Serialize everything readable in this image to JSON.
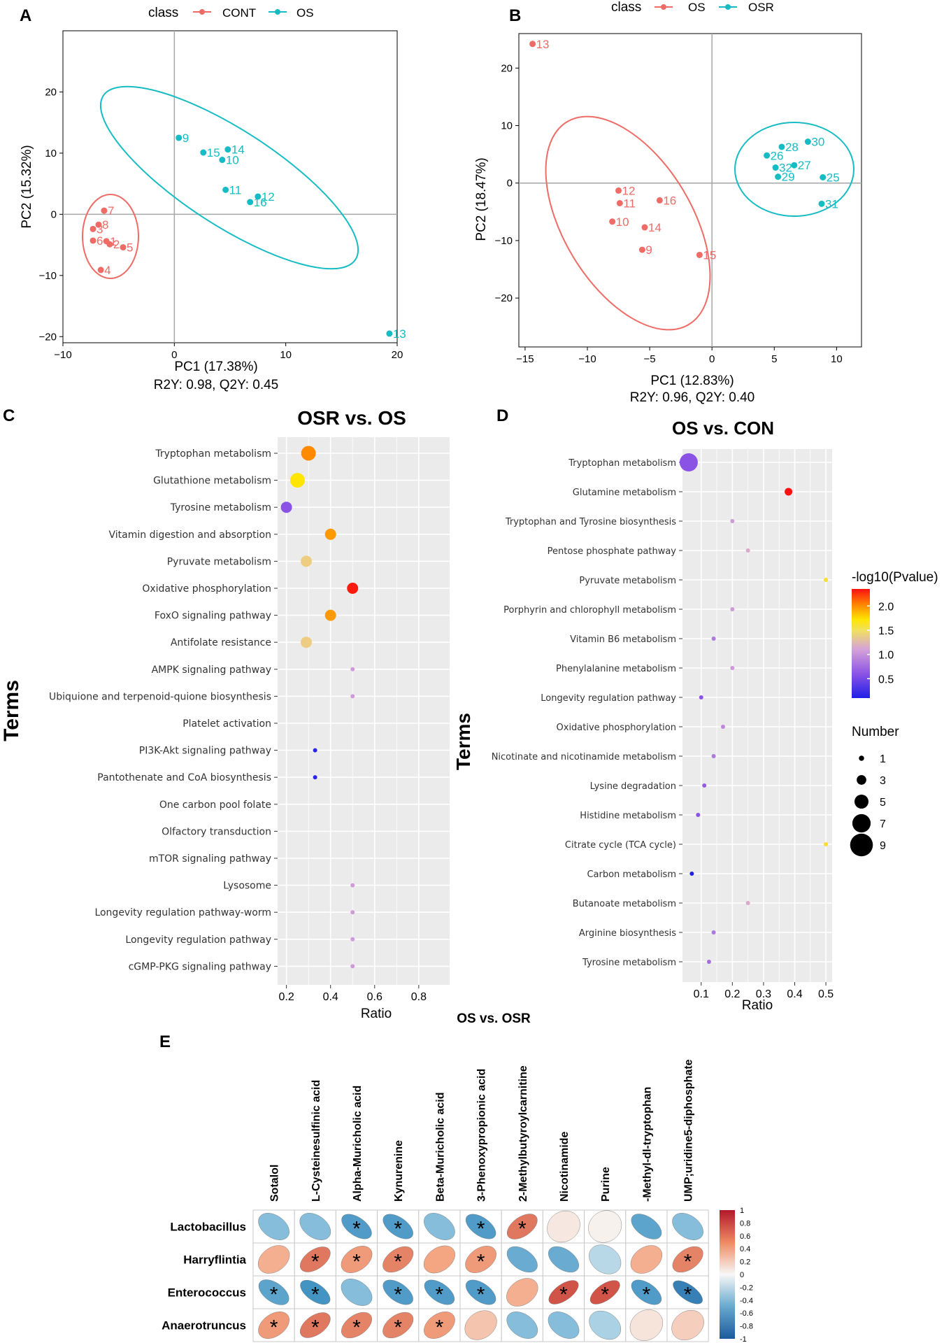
{
  "panel_letters": {
    "a": "A",
    "b": "B",
    "c": "C",
    "d": "D",
    "e": "E"
  },
  "legend_class_label": "class",
  "colors": {
    "red": "#ee6b66",
    "teal": "#16bcc3",
    "panel_bg": "#ebebeb",
    "grid": "#ffffff",
    "axis_line": "#a6a6a6"
  },
  "chart_data": [
    {
      "id": "A",
      "type": "scatter",
      "legend": [
        "CONT",
        "OS"
      ],
      "xlabel": "PC1 (17.38%)",
      "ylabel": "PC2 (15.32%)",
      "subtitle": "R2Y: 0.98, Q2Y: 0.45",
      "xlim": [
        -10,
        20
      ],
      "ylim": [
        -21,
        30
      ],
      "xticks": [
        -10,
        0,
        10,
        20
      ],
      "yticks": [
        -20,
        -10,
        0,
        10,
        20
      ],
      "series": [
        {
          "name": "CONT",
          "points": [
            {
              "x": -6.3,
              "y": 0.6,
              "label": "7"
            },
            {
              "x": -6.8,
              "y": -1.7,
              "label": "8"
            },
            {
              "x": -7.3,
              "y": -2.4,
              "label": "3"
            },
            {
              "x": -7.3,
              "y": -4.3,
              "label": "6"
            },
            {
              "x": -6.1,
              "y": -4.4,
              "label": "1"
            },
            {
              "x": -5.8,
              "y": -4.9,
              "label": "2"
            },
            {
              "x": -4.6,
              "y": -5.4,
              "label": "5"
            },
            {
              "x": -6.6,
              "y": -9.1,
              "label": "4"
            }
          ]
        },
        {
          "name": "OS",
          "points": [
            {
              "x": 0.4,
              "y": 12.5,
              "label": "9"
            },
            {
              "x": 2.6,
              "y": 10.1,
              "label": "15"
            },
            {
              "x": 4.8,
              "y": 10.6,
              "label": "14"
            },
            {
              "x": 4.3,
              "y": 8.9,
              "label": "10"
            },
            {
              "x": 4.6,
              "y": 4.0,
              "label": "11"
            },
            {
              "x": 7.5,
              "y": 2.9,
              "label": "12"
            },
            {
              "x": 6.8,
              "y": 2.0,
              "label": "16"
            },
            {
              "x": 19.3,
              "y": -19.5,
              "label": "13"
            }
          ]
        }
      ]
    },
    {
      "id": "B",
      "type": "scatter",
      "legend": [
        "OS",
        "OSR"
      ],
      "xlabel": "PC1 (12.83%)",
      "ylabel": "PC2 (18.47%)",
      "subtitle": "R2Y: 0.96, Q2Y: 0.40",
      "xlim": [
        -15.5,
        12
      ],
      "ylim": [
        -28.5,
        26
      ],
      "xticks": [
        -15,
        -10,
        -5,
        0,
        5,
        10
      ],
      "yticks": [
        -20,
        -10,
        0,
        10,
        20
      ],
      "series": [
        {
          "name": "OS",
          "points": [
            {
              "x": -14.4,
              "y": 24.2,
              "label": "13"
            },
            {
              "x": -7.5,
              "y": -1.3,
              "label": "12"
            },
            {
              "x": -7.4,
              "y": -3.5,
              "label": "11"
            },
            {
              "x": -4.2,
              "y": -3.0,
              "label": "16"
            },
            {
              "x": -8.0,
              "y": -6.7,
              "label": "10"
            },
            {
              "x": -5.4,
              "y": -7.7,
              "label": "14"
            },
            {
              "x": -5.6,
              "y": -11.6,
              "label": "9"
            },
            {
              "x": -1.0,
              "y": -12.5,
              "label": "15"
            }
          ]
        },
        {
          "name": "OSR",
          "points": [
            {
              "x": 7.7,
              "y": 7.2,
              "label": "30"
            },
            {
              "x": 5.6,
              "y": 6.3,
              "label": "28"
            },
            {
              "x": 4.4,
              "y": 4.8,
              "label": "26"
            },
            {
              "x": 6.6,
              "y": 3.1,
              "label": "27"
            },
            {
              "x": 5.1,
              "y": 2.7,
              "label": "32"
            },
            {
              "x": 5.3,
              "y": 1.1,
              "label": "29"
            },
            {
              "x": 8.9,
              "y": 1.0,
              "label": "25"
            },
            {
              "x": 8.8,
              "y": -3.6,
              "label": "31"
            }
          ]
        }
      ]
    },
    {
      "id": "C",
      "type": "scatter",
      "title": "OSR vs. OS",
      "xlabel": "Ratio",
      "ylabel": "Terms",
      "xlim": [
        0.16,
        0.94
      ],
      "xticks": [
        0.2,
        0.4,
        0.6,
        0.8
      ],
      "points": [
        {
          "term": "Tryptophan metabolism",
          "ratio": 0.3,
          "number": 7,
          "neglog10p": 1.75
        },
        {
          "term": "Glutathione metabolism",
          "ratio": 0.25,
          "number": 7,
          "neglog10p": 1.45
        },
        {
          "term": "Tyrosine metabolism",
          "ratio": 0.2,
          "number": 5,
          "neglog10p": 0.55
        },
        {
          "term": "Vitamin digestion and absorption",
          "ratio": 0.4,
          "number": 5,
          "neglog10p": 1.7
        },
        {
          "term": "Pyruvate metabolism",
          "ratio": 0.29,
          "number": 5,
          "neglog10p": 1.3
        },
        {
          "term": "Oxidative phosphorylation",
          "ratio": 0.5,
          "number": 5,
          "neglog10p": 2.3
        },
        {
          "term": "FoxO signaling pathway",
          "ratio": 0.4,
          "number": 5,
          "neglog10p": 1.7
        },
        {
          "term": "Antifolate resistance",
          "ratio": 0.29,
          "number": 5,
          "neglog10p": 1.3
        },
        {
          "term": "AMPK signaling pathway",
          "ratio": 0.5,
          "number": 1,
          "neglog10p": 0.95
        },
        {
          "term": "Ubiquione and terpenoid-quione biosynthesis",
          "ratio": 0.5,
          "number": 1,
          "neglog10p": 0.95
        },
        {
          "term": "Platelet activation",
          "ratio": null,
          "number": null,
          "neglog10p": null
        },
        {
          "term": "PI3K-Akt signaling pathway",
          "ratio": 0.33,
          "number": 1,
          "neglog10p": 0.15
        },
        {
          "term": "Pantothenate and CoA biosynthesis",
          "ratio": 0.33,
          "number": 1,
          "neglog10p": 0.15
        },
        {
          "term": "One carbon pool folate",
          "ratio": null,
          "number": null,
          "neglog10p": null
        },
        {
          "term": "Olfactory transduction",
          "ratio": null,
          "number": null,
          "neglog10p": null
        },
        {
          "term": "mTOR signaling pathway",
          "ratio": null,
          "number": null,
          "neglog10p": null
        },
        {
          "term": "Lysosome",
          "ratio": 0.5,
          "number": 1,
          "neglog10p": 0.95
        },
        {
          "term": "Longevity regulation pathway-worm",
          "ratio": 0.5,
          "number": 1,
          "neglog10p": 0.95
        },
        {
          "term": "Longevity regulation pathway",
          "ratio": 0.5,
          "number": 1,
          "neglog10p": 0.95
        },
        {
          "term": "cGMP-PKG signaling pathway",
          "ratio": 0.5,
          "number": 1,
          "neglog10p": 0.95
        }
      ]
    },
    {
      "id": "D",
      "type": "scatter",
      "title": "OS vs. CON",
      "xlabel": "Ratio",
      "ylabel": "Terms",
      "xlim": [
        0.04,
        0.52
      ],
      "xticks": [
        0.1,
        0.2,
        0.3,
        0.4,
        0.5
      ],
      "points": [
        {
          "term": "Tryptophan metabolism",
          "ratio": 0.06,
          "number": 9,
          "neglog10p": 0.55
        },
        {
          "term": "Glutamine metabolism",
          "ratio": 0.38,
          "number": 3,
          "neglog10p": 2.35
        },
        {
          "term": "Tryptophan and Tyrosine biosynthesis",
          "ratio": 0.2,
          "number": 1,
          "neglog10p": 0.95
        },
        {
          "term": "Pentose phosphate pathway",
          "ratio": 0.25,
          "number": 1,
          "neglog10p": 1.05
        },
        {
          "term": "Pyruvate metabolism",
          "ratio": 0.5,
          "number": 1,
          "neglog10p": 1.4
        },
        {
          "term": "Porphyrin and chlorophyll metabolism",
          "ratio": 0.2,
          "number": 1,
          "neglog10p": 0.95
        },
        {
          "term": "Vitamin B6 metabolism",
          "ratio": 0.14,
          "number": 1,
          "neglog10p": 0.75
        },
        {
          "term": "Phenylalanine metabolism",
          "ratio": 0.2,
          "number": 1,
          "neglog10p": 0.95
        },
        {
          "term": "Longevity regulation pathway",
          "ratio": 0.1,
          "number": 1,
          "neglog10p": 0.55
        },
        {
          "term": "Oxidative phosphorylation",
          "ratio": 0.17,
          "number": 1,
          "neglog10p": 0.85
        },
        {
          "term": "Nicotinate and nicotinamide metabolism",
          "ratio": 0.14,
          "number": 1,
          "neglog10p": 0.75
        },
        {
          "term": "Lysine degradation",
          "ratio": 0.11,
          "number": 1,
          "neglog10p": 0.6
        },
        {
          "term": "Histidine metabolism",
          "ratio": 0.09,
          "number": 1,
          "neglog10p": 0.55
        },
        {
          "term": "Citrate cycle (TCA cycle)",
          "ratio": 0.5,
          "number": 1,
          "neglog10p": 1.4
        },
        {
          "term": "Carbon metabolism",
          "ratio": 0.07,
          "number": 1,
          "neglog10p": 0.1
        },
        {
          "term": "Butanoate metabolism",
          "ratio": 0.25,
          "number": 1,
          "neglog10p": 1.05
        },
        {
          "term": "Arginine biosynthesis",
          "ratio": 0.14,
          "number": 1,
          "neglog10p": 0.75
        },
        {
          "term": "Tyrosine metabolism",
          "ratio": 0.125,
          "number": 1,
          "neglog10p": 0.7
        }
      ]
    },
    {
      "id": "E",
      "type": "heatmap",
      "title": "OS vs. OSR",
      "columns": [
        "Sotalol",
        "L-Cysteinesulfinic acid",
        "Alpha-Muricholic acid",
        "Kynurenine",
        "Beta-Muricholic acid",
        "3-Phenoxypropionic acid",
        "2-Methylbutyroylcarnitine",
        "Nicotinamide",
        "Purine",
        "-Methyl-dl-tryptophan",
        "UMP;uridine5-diphosphate"
      ],
      "rows": [
        "Lactobacillus",
        "Harryflintia",
        "Enterococcus",
        "Anaerotruncus"
      ],
      "values": [
        [
          -0.45,
          -0.45,
          -0.65,
          -0.65,
          -0.45,
          -0.65,
          0.6,
          0.08,
          0.03,
          -0.6,
          -0.45
        ],
        [
          0.35,
          0.6,
          0.45,
          0.55,
          0.4,
          0.45,
          -0.55,
          -0.55,
          -0.25,
          0.35,
          0.55
        ],
        [
          -0.6,
          -0.7,
          -0.45,
          -0.65,
          -0.65,
          -0.65,
          0.35,
          0.75,
          0.75,
          -0.65,
          -0.8
        ],
        [
          0.45,
          0.6,
          0.55,
          0.55,
          0.45,
          0.25,
          -0.45,
          -0.45,
          -0.3,
          0.1,
          0.2
        ]
      ],
      "significant": [
        [
          false,
          false,
          true,
          true,
          false,
          true,
          true,
          false,
          false,
          false,
          false
        ],
        [
          false,
          true,
          true,
          true,
          false,
          true,
          false,
          false,
          false,
          false,
          true
        ],
        [
          true,
          true,
          false,
          true,
          true,
          true,
          false,
          true,
          true,
          true,
          true
        ],
        [
          true,
          true,
          true,
          true,
          true,
          false,
          false,
          false,
          false,
          false,
          false
        ]
      ],
      "colorbar_ticks": [
        "1",
        "0.8",
        "0.6",
        "0.4",
        "0.2",
        "0",
        "-0.2",
        "-0.4",
        "-0.6",
        "-0.8",
        "-1"
      ],
      "significance_mark": "*"
    }
  ],
  "legends": {
    "pvalue_title": "-log10(Pvalue)",
    "pvalue_ticks": [
      "2.0",
      "1.5",
      "1.0",
      "0.5"
    ],
    "number_title": "Number",
    "number_ticks": [
      "1",
      "3",
      "5",
      "7",
      "9"
    ]
  }
}
